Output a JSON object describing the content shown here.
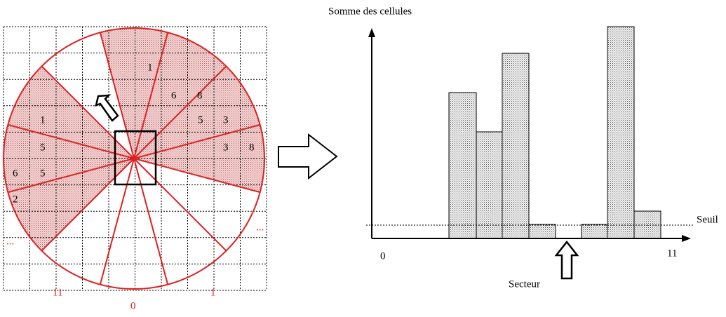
{
  "left_grid": {
    "cell_values": [
      "1",
      "6",
      "8",
      "5",
      "3",
      "3",
      "8",
      "1",
      "5",
      "6",
      "5",
      "2"
    ],
    "sector_labels": [
      "11",
      "0",
      "1"
    ],
    "ellipses": [
      "...",
      "..."
    ]
  },
  "histogram": {
    "y_label": "Somme des cellules",
    "threshold_label": "Seuil",
    "x_start": "0",
    "x_end": "11",
    "x_label": "Secteur"
  }
}
